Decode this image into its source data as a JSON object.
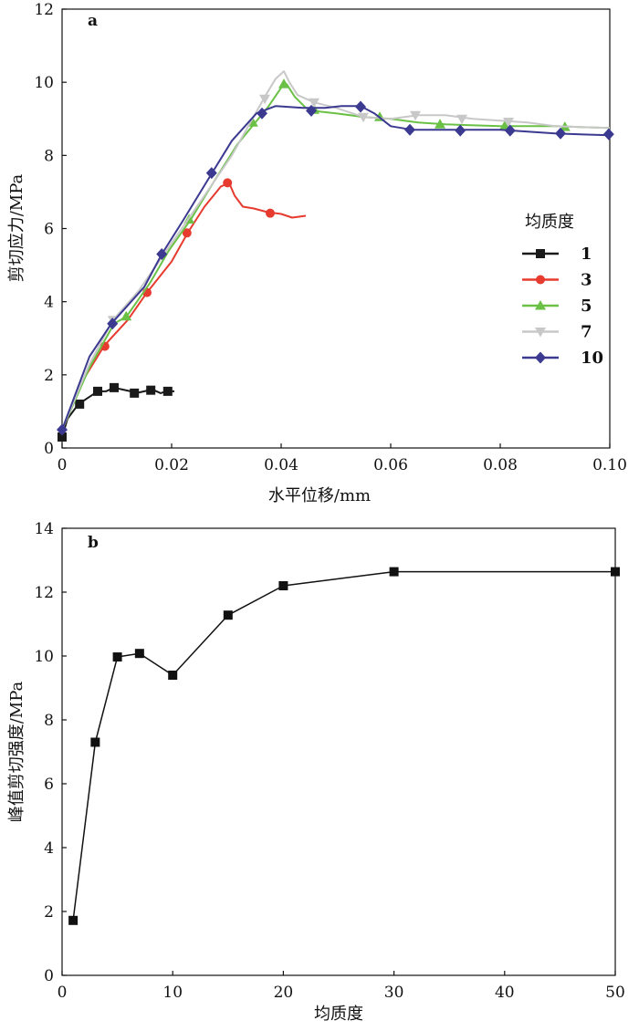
{
  "chart_data": [
    {
      "panel": "a",
      "type": "line",
      "xlabel": "水平位移/mm",
      "ylabel": "剪切应力/MPa",
      "xlim": [
        0,
        0.1
      ],
      "ylim": [
        0,
        12
      ],
      "xticks": [
        "0",
        "0.02",
        "0.04",
        "0.06",
        "0.08",
        "0.10"
      ],
      "yticks": [
        "0",
        "2",
        "4",
        "6",
        "8",
        "10",
        "12"
      ],
      "legend_title": "均质度",
      "legend_position": "right",
      "series": [
        {
          "name": "1",
          "color": "#1a1a1a",
          "marker": "square",
          "points": [
            [
              0,
              0.3
            ],
            [
              0.001,
              0.8
            ],
            [
              0.003,
              1.2
            ],
            [
              0.005,
              1.4
            ],
            [
              0.0065,
              1.55
            ],
            [
              0.008,
              1.55
            ],
            [
              0.0095,
              1.65
            ],
            [
              0.011,
              1.6
            ],
            [
              0.0125,
              1.55
            ],
            [
              0.0135,
              1.5
            ],
            [
              0.015,
              1.55
            ],
            [
              0.0165,
              1.6
            ],
            [
              0.018,
              1.5
            ],
            [
              0.019,
              1.55
            ],
            [
              0.0205,
              1.55
            ]
          ],
          "markers": [
            [
              0,
              0.3
            ],
            [
              0.0032,
              1.2
            ],
            [
              0.0065,
              1.55
            ],
            [
              0.0095,
              1.65
            ],
            [
              0.0132,
              1.5
            ],
            [
              0.0162,
              1.58
            ],
            [
              0.0193,
              1.55
            ]
          ]
        },
        {
          "name": "3",
          "color": "#e63b2e",
          "marker": "circle",
          "points": [
            [
              0,
              0.5
            ],
            [
              0.004,
              1.9
            ],
            [
              0.0077,
              2.8
            ],
            [
              0.012,
              3.5
            ],
            [
              0.0155,
              4.25
            ],
            [
              0.02,
              5.1
            ],
            [
              0.023,
              5.9
            ],
            [
              0.026,
              6.6
            ],
            [
              0.029,
              7.15
            ],
            [
              0.0305,
              7.25
            ],
            [
              0.0315,
              6.9
            ],
            [
              0.033,
              6.6
            ],
            [
              0.035,
              6.55
            ],
            [
              0.0375,
              6.45
            ],
            [
              0.04,
              6.4
            ],
            [
              0.042,
              6.3
            ],
            [
              0.0445,
              6.35
            ]
          ],
          "markers": [
            [
              0.0078,
              2.78
            ],
            [
              0.0155,
              4.25
            ],
            [
              0.0228,
              5.88
            ],
            [
              0.0302,
              7.25
            ],
            [
              0.038,
              6.42
            ]
          ]
        },
        {
          "name": "5",
          "color": "#6ac146",
          "marker": "triangle",
          "points": [
            [
              0,
              0.5
            ],
            [
              0.005,
              2.2
            ],
            [
              0.0095,
              3.4
            ],
            [
              0.0118,
              3.6
            ],
            [
              0.016,
              4.5
            ],
            [
              0.0195,
              5.4
            ],
            [
              0.0235,
              6.25
            ],
            [
              0.028,
              7.35
            ],
            [
              0.032,
              8.3
            ],
            [
              0.035,
              8.85
            ],
            [
              0.0375,
              9.3
            ],
            [
              0.04,
              9.85
            ],
            [
              0.041,
              9.95
            ],
            [
              0.0425,
              9.6
            ],
            [
              0.0445,
              9.3
            ],
            [
              0.047,
              9.2
            ],
            [
              0.05,
              9.15
            ],
            [
              0.055,
              9.05
            ],
            [
              0.06,
              9.0
            ],
            [
              0.065,
              8.9
            ],
            [
              0.07,
              8.85
            ],
            [
              0.08,
              8.8
            ],
            [
              0.09,
              8.8
            ],
            [
              0.1,
              8.75
            ]
          ],
          "markers": [
            [
              0.0117,
              3.6
            ],
            [
              0.0232,
              6.25
            ],
            [
              0.0348,
              8.9
            ],
            [
              0.0405,
              9.95
            ],
            [
              0.046,
              9.25
            ],
            [
              0.058,
              9.05
            ],
            [
              0.069,
              8.85
            ],
            [
              0.0808,
              8.8
            ],
            [
              0.0918,
              8.78
            ]
          ]
        },
        {
          "name": "7",
          "color": "#c8c8c8",
          "marker": "triangle-down",
          "points": [
            [
              0,
              0.5
            ],
            [
              0.005,
              2.3
            ],
            [
              0.0093,
              3.5
            ],
            [
              0.014,
              4.3
            ],
            [
              0.02,
              5.6
            ],
            [
              0.026,
              6.9
            ],
            [
              0.031,
              8.0
            ],
            [
              0.034,
              8.8
            ],
            [
              0.037,
              9.6
            ],
            [
              0.039,
              10.1
            ],
            [
              0.0405,
              10.3
            ],
            [
              0.0415,
              10.0
            ],
            [
              0.043,
              9.65
            ],
            [
              0.046,
              9.45
            ],
            [
              0.05,
              9.3
            ],
            [
              0.055,
              9.05
            ],
            [
              0.06,
              9.0
            ],
            [
              0.065,
              9.1
            ],
            [
              0.07,
              9.1
            ],
            [
              0.075,
              9.0
            ],
            [
              0.08,
              8.95
            ],
            [
              0.085,
              8.9
            ],
            [
              0.09,
              8.8
            ],
            [
              0.1,
              8.75
            ]
          ],
          "markers": [
            [
              0.0093,
              3.5
            ],
            [
              0.037,
              9.55
            ],
            [
              0.046,
              9.45
            ],
            [
              0.055,
              9.05
            ],
            [
              0.0645,
              9.1
            ],
            [
              0.073,
              9.0
            ],
            [
              0.0815,
              8.92
            ]
          ]
        },
        {
          "name": "10",
          "color": "#3b3990",
          "marker": "diamond",
          "points": [
            [
              0,
              0.5
            ],
            [
              0.005,
              2.5
            ],
            [
              0.009,
              3.4
            ],
            [
              0.012,
              3.9
            ],
            [
              0.015,
              4.4
            ],
            [
              0.0182,
              5.3
            ],
            [
              0.022,
              6.2
            ],
            [
              0.0273,
              7.5
            ],
            [
              0.031,
              8.4
            ],
            [
              0.0355,
              9.15
            ],
            [
              0.039,
              9.35
            ],
            [
              0.044,
              9.3
            ],
            [
              0.048,
              9.3
            ],
            [
              0.051,
              9.35
            ],
            [
              0.0545,
              9.35
            ],
            [
              0.057,
              9.15
            ],
            [
              0.06,
              8.8
            ],
            [
              0.064,
              8.7
            ],
            [
              0.07,
              8.7
            ],
            [
              0.08,
              8.7
            ],
            [
              0.09,
              8.6
            ],
            [
              0.1,
              8.55
            ]
          ],
          "markers": [
            [
              0,
              0.5
            ],
            [
              0.0092,
              3.4
            ],
            [
              0.0182,
              5.3
            ],
            [
              0.0273,
              7.52
            ],
            [
              0.0365,
              9.15
            ],
            [
              0.0455,
              9.22
            ],
            [
              0.0545,
              9.33
            ],
            [
              0.0635,
              8.7
            ],
            [
              0.0727,
              8.68
            ],
            [
              0.0818,
              8.68
            ],
            [
              0.091,
              8.6
            ],
            [
              0.0998,
              8.58
            ]
          ]
        }
      ]
    },
    {
      "panel": "b",
      "type": "line",
      "xlabel": "均质度",
      "ylabel": "峰值剪切强度/MPa",
      "xlim": [
        0,
        50
      ],
      "ylim": [
        0,
        14
      ],
      "xticks": [
        "0",
        "10",
        "20",
        "30",
        "40",
        "50"
      ],
      "yticks": [
        "0",
        "2",
        "4",
        "6",
        "8",
        "10",
        "12",
        "14"
      ],
      "series": [
        {
          "name": "",
          "color": "#111111",
          "marker": "square",
          "points": [
            [
              1,
              1.72
            ],
            [
              3,
              7.3
            ],
            [
              5,
              9.97
            ],
            [
              7,
              10.08
            ],
            [
              10,
              9.4
            ],
            [
              15,
              11.28
            ],
            [
              20,
              12.2
            ],
            [
              30,
              12.64
            ],
            [
              50,
              12.64
            ]
          ]
        }
      ]
    }
  ]
}
